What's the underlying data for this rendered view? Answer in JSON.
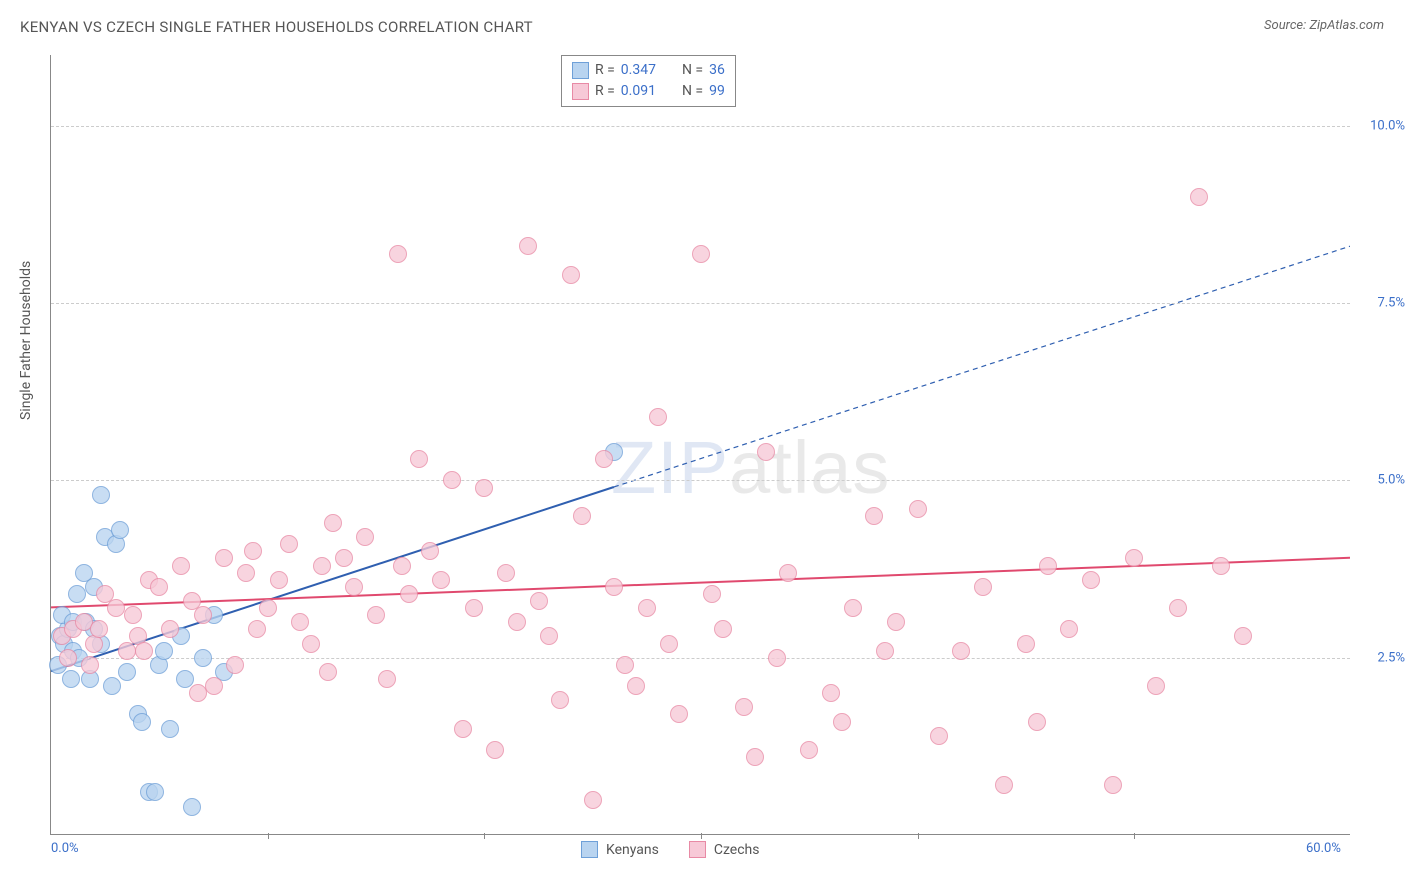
{
  "title": "KENYAN VS CZECH SINGLE FATHER HOUSEHOLDS CORRELATION CHART",
  "source_prefix": "Source: ",
  "source_name": "ZipAtlas.com",
  "y_axis_label": "Single Father Households",
  "watermark_a": "ZIP",
  "watermark_b": "atlas",
  "chart": {
    "type": "scatter",
    "xlim": [
      0,
      60
    ],
    "ylim": [
      0,
      11
    ],
    "x_ticks": [
      0,
      60
    ],
    "x_tick_labels": [
      "0.0%",
      "60.0%"
    ],
    "y_ticks": [
      2.5,
      5.0,
      7.5,
      10.0
    ],
    "y_tick_labels": [
      "2.5%",
      "5.0%",
      "7.5%",
      "10.0%"
    ],
    "v_gridlines": [
      10,
      20,
      30,
      40,
      50
    ],
    "background_color": "#ffffff",
    "grid_color": "#cccccc",
    "point_radius": 9,
    "point_border_width": 1.2,
    "series": [
      {
        "name": "Kenyans",
        "fill": "#b9d4f0",
        "stroke": "#6fa0d8",
        "r_value": "0.347",
        "n_value": "36",
        "trend": {
          "x1": 0,
          "y1": 2.3,
          "x2": 26,
          "y2": 4.9,
          "dash_x2": 60,
          "dash_y2": 8.3,
          "color": "#2f5fb0",
          "width": 2
        },
        "points": [
          [
            0.3,
            2.4
          ],
          [
            0.4,
            2.8
          ],
          [
            0.6,
            2.7
          ],
          [
            0.8,
            2.9
          ],
          [
            0.5,
            3.1
          ],
          [
            1.0,
            2.6
          ],
          [
            1.3,
            2.5
          ],
          [
            1.0,
            3.0
          ],
          [
            1.6,
            3.0
          ],
          [
            2.0,
            2.9
          ],
          [
            2.0,
            3.5
          ],
          [
            2.3,
            2.7
          ],
          [
            2.3,
            4.8
          ],
          [
            2.5,
            4.2
          ],
          [
            3.0,
            4.1
          ],
          [
            3.2,
            4.3
          ],
          [
            3.5,
            2.3
          ],
          [
            4.0,
            1.7
          ],
          [
            4.2,
            1.6
          ],
          [
            4.5,
            0.6
          ],
          [
            4.8,
            0.6
          ],
          [
            5.0,
            2.4
          ],
          [
            5.2,
            2.6
          ],
          [
            5.5,
            1.5
          ],
          [
            6.0,
            2.8
          ],
          [
            6.2,
            2.2
          ],
          [
            6.5,
            0.4
          ],
          [
            7.0,
            2.5
          ],
          [
            7.5,
            3.1
          ],
          [
            8.0,
            2.3
          ],
          [
            1.5,
            3.7
          ],
          [
            1.8,
            2.2
          ],
          [
            0.9,
            2.2
          ],
          [
            1.2,
            3.4
          ],
          [
            2.8,
            2.1
          ],
          [
            26,
            5.4
          ]
        ]
      },
      {
        "name": "Czechs",
        "fill": "#f7c9d7",
        "stroke": "#e88aa5",
        "r_value": "0.091",
        "n_value": "99",
        "trend": {
          "x1": 0,
          "y1": 3.2,
          "x2": 60,
          "y2": 3.9,
          "color": "#e0496e",
          "width": 2
        },
        "points": [
          [
            0.5,
            2.8
          ],
          [
            1.0,
            2.9
          ],
          [
            1.5,
            3.0
          ],
          [
            2.0,
            2.7
          ],
          [
            2.5,
            3.4
          ],
          [
            3.0,
            3.2
          ],
          [
            3.5,
            2.6
          ],
          [
            4.0,
            2.8
          ],
          [
            4.5,
            3.6
          ],
          [
            5.0,
            3.5
          ],
          [
            5.5,
            2.9
          ],
          [
            6.0,
            3.8
          ],
          [
            6.5,
            3.3
          ],
          [
            7.0,
            3.1
          ],
          [
            7.5,
            2.1
          ],
          [
            8.0,
            3.9
          ],
          [
            8.5,
            2.4
          ],
          [
            9.0,
            3.7
          ],
          [
            9.5,
            2.9
          ],
          [
            10,
            3.2
          ],
          [
            10.5,
            3.6
          ],
          [
            11,
            4.1
          ],
          [
            11.5,
            3.0
          ],
          [
            12,
            2.7
          ],
          [
            12.5,
            3.8
          ],
          [
            13,
            4.4
          ],
          [
            13.5,
            3.9
          ],
          [
            14,
            3.5
          ],
          [
            14.5,
            4.2
          ],
          [
            15,
            3.1
          ],
          [
            15.5,
            2.2
          ],
          [
            16,
            8.2
          ],
          [
            16.5,
            3.4
          ],
          [
            17,
            5.3
          ],
          [
            17.5,
            4.0
          ],
          [
            18,
            3.6
          ],
          [
            18.5,
            5.0
          ],
          [
            19,
            1.5
          ],
          [
            19.5,
            3.2
          ],
          [
            20,
            4.9
          ],
          [
            20.5,
            1.2
          ],
          [
            21,
            3.7
          ],
          [
            21.5,
            3.0
          ],
          [
            22,
            8.3
          ],
          [
            22.5,
            3.3
          ],
          [
            23,
            2.8
          ],
          [
            23.5,
            1.9
          ],
          [
            24,
            7.9
          ],
          [
            24.5,
            4.5
          ],
          [
            25,
            0.5
          ],
          [
            25.5,
            5.3
          ],
          [
            26,
            3.5
          ],
          [
            26.5,
            2.4
          ],
          [
            27,
            2.1
          ],
          [
            27.5,
            3.2
          ],
          [
            28,
            5.9
          ],
          [
            28.5,
            2.7
          ],
          [
            29,
            1.7
          ],
          [
            30,
            8.2
          ],
          [
            30.5,
            3.4
          ],
          [
            31,
            2.9
          ],
          [
            32,
            1.8
          ],
          [
            32.5,
            1.1
          ],
          [
            33,
            5.4
          ],
          [
            33.5,
            2.5
          ],
          [
            34,
            3.7
          ],
          [
            35,
            1.2
          ],
          [
            36,
            2.0
          ],
          [
            36.5,
            1.6
          ],
          [
            37,
            3.2
          ],
          [
            38,
            4.5
          ],
          [
            38.5,
            2.6
          ],
          [
            39,
            3.0
          ],
          [
            40,
            4.6
          ],
          [
            41,
            1.4
          ],
          [
            42,
            2.6
          ],
          [
            43,
            3.5
          ],
          [
            44,
            0.7
          ],
          [
            45,
            2.7
          ],
          [
            45.5,
            1.6
          ],
          [
            46,
            3.8
          ],
          [
            47,
            2.9
          ],
          [
            48,
            3.6
          ],
          [
            49,
            0.7
          ],
          [
            50,
            3.9
          ],
          [
            51,
            2.1
          ],
          [
            52,
            3.2
          ],
          [
            53,
            9.0
          ],
          [
            54,
            3.8
          ],
          [
            55,
            2.8
          ],
          [
            0.8,
            2.5
          ],
          [
            1.8,
            2.4
          ],
          [
            2.2,
            2.9
          ],
          [
            3.8,
            3.1
          ],
          [
            4.3,
            2.6
          ],
          [
            6.8,
            2.0
          ],
          [
            9.3,
            4.0
          ],
          [
            12.8,
            2.3
          ],
          [
            16.2,
            3.8
          ]
        ]
      }
    ]
  },
  "legend_labels": {
    "r": "R =",
    "n": "N ="
  },
  "bottom_legend": [
    "Kenyans",
    "Czechs"
  ]
}
